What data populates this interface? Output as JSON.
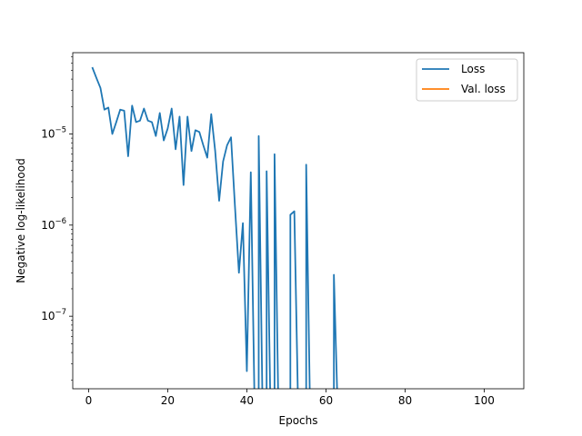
{
  "colors": {
    "loss": "#1f77b4",
    "val_loss": "#ff7f0e",
    "axes": "#000000",
    "legend_border": "#cccccc"
  },
  "chart_data": {
    "type": "line",
    "xlabel": "Epochs",
    "ylabel": "Negative log-likelihood",
    "x_scale": "linear",
    "y_scale": "log",
    "xlim": [
      -4,
      110
    ],
    "ylim": [
      1.6e-08,
      7.8e-05
    ],
    "grid": false,
    "legend_position": "top-right",
    "x_ticks": [
      {
        "value": 0,
        "label": "0"
      },
      {
        "value": 20,
        "label": "20"
      },
      {
        "value": 40,
        "label": "40"
      },
      {
        "value": 60,
        "label": "60"
      },
      {
        "value": 80,
        "label": "80"
      },
      {
        "value": 100,
        "label": "100"
      }
    ],
    "y_ticks": [
      {
        "value": 1e-07,
        "base": "10",
        "exp": "−7"
      },
      {
        "value": 1e-06,
        "base": "10",
        "exp": "−6"
      },
      {
        "value": 1e-05,
        "base": "10",
        "exp": "−5"
      }
    ],
    "series": [
      {
        "name": "Loss",
        "color": "#1f77b4",
        "x": [
          1,
          2,
          3,
          4,
          5,
          6,
          7,
          8,
          9,
          10,
          11,
          12,
          13,
          14,
          15,
          16,
          17,
          18,
          19,
          20,
          21,
          22,
          23,
          24,
          25,
          26,
          27,
          28,
          29,
          30,
          31,
          32,
          33,
          34,
          35,
          36,
          37,
          38,
          39,
          40,
          41,
          42,
          43,
          44,
          45,
          46,
          47,
          48,
          49,
          50,
          51,
          52,
          53,
          54,
          55,
          56,
          57,
          58,
          59,
          60,
          61,
          62,
          63
        ],
        "values": [
          5.3e-05,
          4.1e-05,
          3.2e-05,
          1.85e-05,
          1.95e-05,
          1e-05,
          1.35e-05,
          1.85e-05,
          1.8e-05,
          5.7e-06,
          2.05e-05,
          1.35e-05,
          1.4e-05,
          1.9e-05,
          1.4e-05,
          1.35e-05,
          9.5e-06,
          1.7e-05,
          8.5e-06,
          1.15e-05,
          1.9e-05,
          6.8e-06,
          1.55e-05,
          2.75e-06,
          1.55e-05,
          6.5e-06,
          1.1e-05,
          1.05e-05,
          7.5e-06,
          5.5e-06,
          1.65e-05,
          6.5e-06,
          1.85e-06,
          5e-06,
          7.5e-06,
          9.2e-06,
          1.6e-06,
          3e-07,
          1.05e-06,
          2.5e-08,
          3.8e-06,
          null,
          9.5e-06,
          null,
          3.9e-06,
          null,
          6e-06,
          null,
          null,
          null,
          1.3e-06,
          1.42e-06,
          null,
          null,
          4.6e-06,
          null,
          null,
          null,
          null,
          null,
          null,
          2.85e-07,
          null
        ]
      },
      {
        "name": "Val. loss",
        "color": "#ff7f0e",
        "x": [],
        "values": []
      }
    ]
  }
}
